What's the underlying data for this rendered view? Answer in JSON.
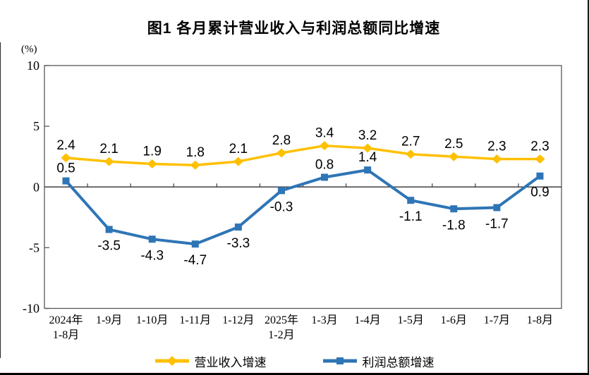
{
  "chart_data": {
    "type": "line",
    "title": "图1  各月累计营业收入与利润总额同比增速",
    "unit": "(%)",
    "categories": [
      [
        "2024年",
        "1-8月"
      ],
      [
        "1-9月"
      ],
      [
        "1-10月"
      ],
      [
        "1-11月"
      ],
      [
        "1-12月"
      ],
      [
        "2025年",
        "1-2月"
      ],
      [
        "1-3月"
      ],
      [
        "1-4月"
      ],
      [
        "1-5月"
      ],
      [
        "1-6月"
      ],
      [
        "1-7月"
      ],
      [
        "1-8月"
      ]
    ],
    "series": [
      {
        "name": "营业收入增速",
        "color": "#FFC000",
        "marker": "diamond",
        "line_width": 3.5,
        "values": [
          2.4,
          2.1,
          1.9,
          1.8,
          2.1,
          2.8,
          3.4,
          3.2,
          2.7,
          2.5,
          2.3,
          2.3
        ],
        "label_positions": [
          "above",
          "above",
          "above",
          "above",
          "above",
          "above",
          "above",
          "above",
          "above",
          "above",
          "above",
          "above"
        ]
      },
      {
        "name": "利润总额增速",
        "color": "#2E75B6",
        "marker": "square",
        "line_width": 4,
        "values": [
          0.5,
          -3.5,
          -4.3,
          -4.7,
          -3.3,
          -0.3,
          0.8,
          1.4,
          -1.1,
          -1.8,
          -1.7,
          0.9
        ],
        "label_positions": [
          "above",
          "below",
          "below",
          "below",
          "below",
          "below",
          "above",
          "above",
          "below",
          "below",
          "below",
          "below"
        ]
      }
    ],
    "y_axis": {
      "min": -10,
      "max": 10,
      "ticks": [
        10,
        5,
        0,
        -5,
        -10
      ]
    },
    "grid": "off",
    "legend_position": "bottom",
    "axis_color": "#595959",
    "zero_line_color": "#404040"
  }
}
